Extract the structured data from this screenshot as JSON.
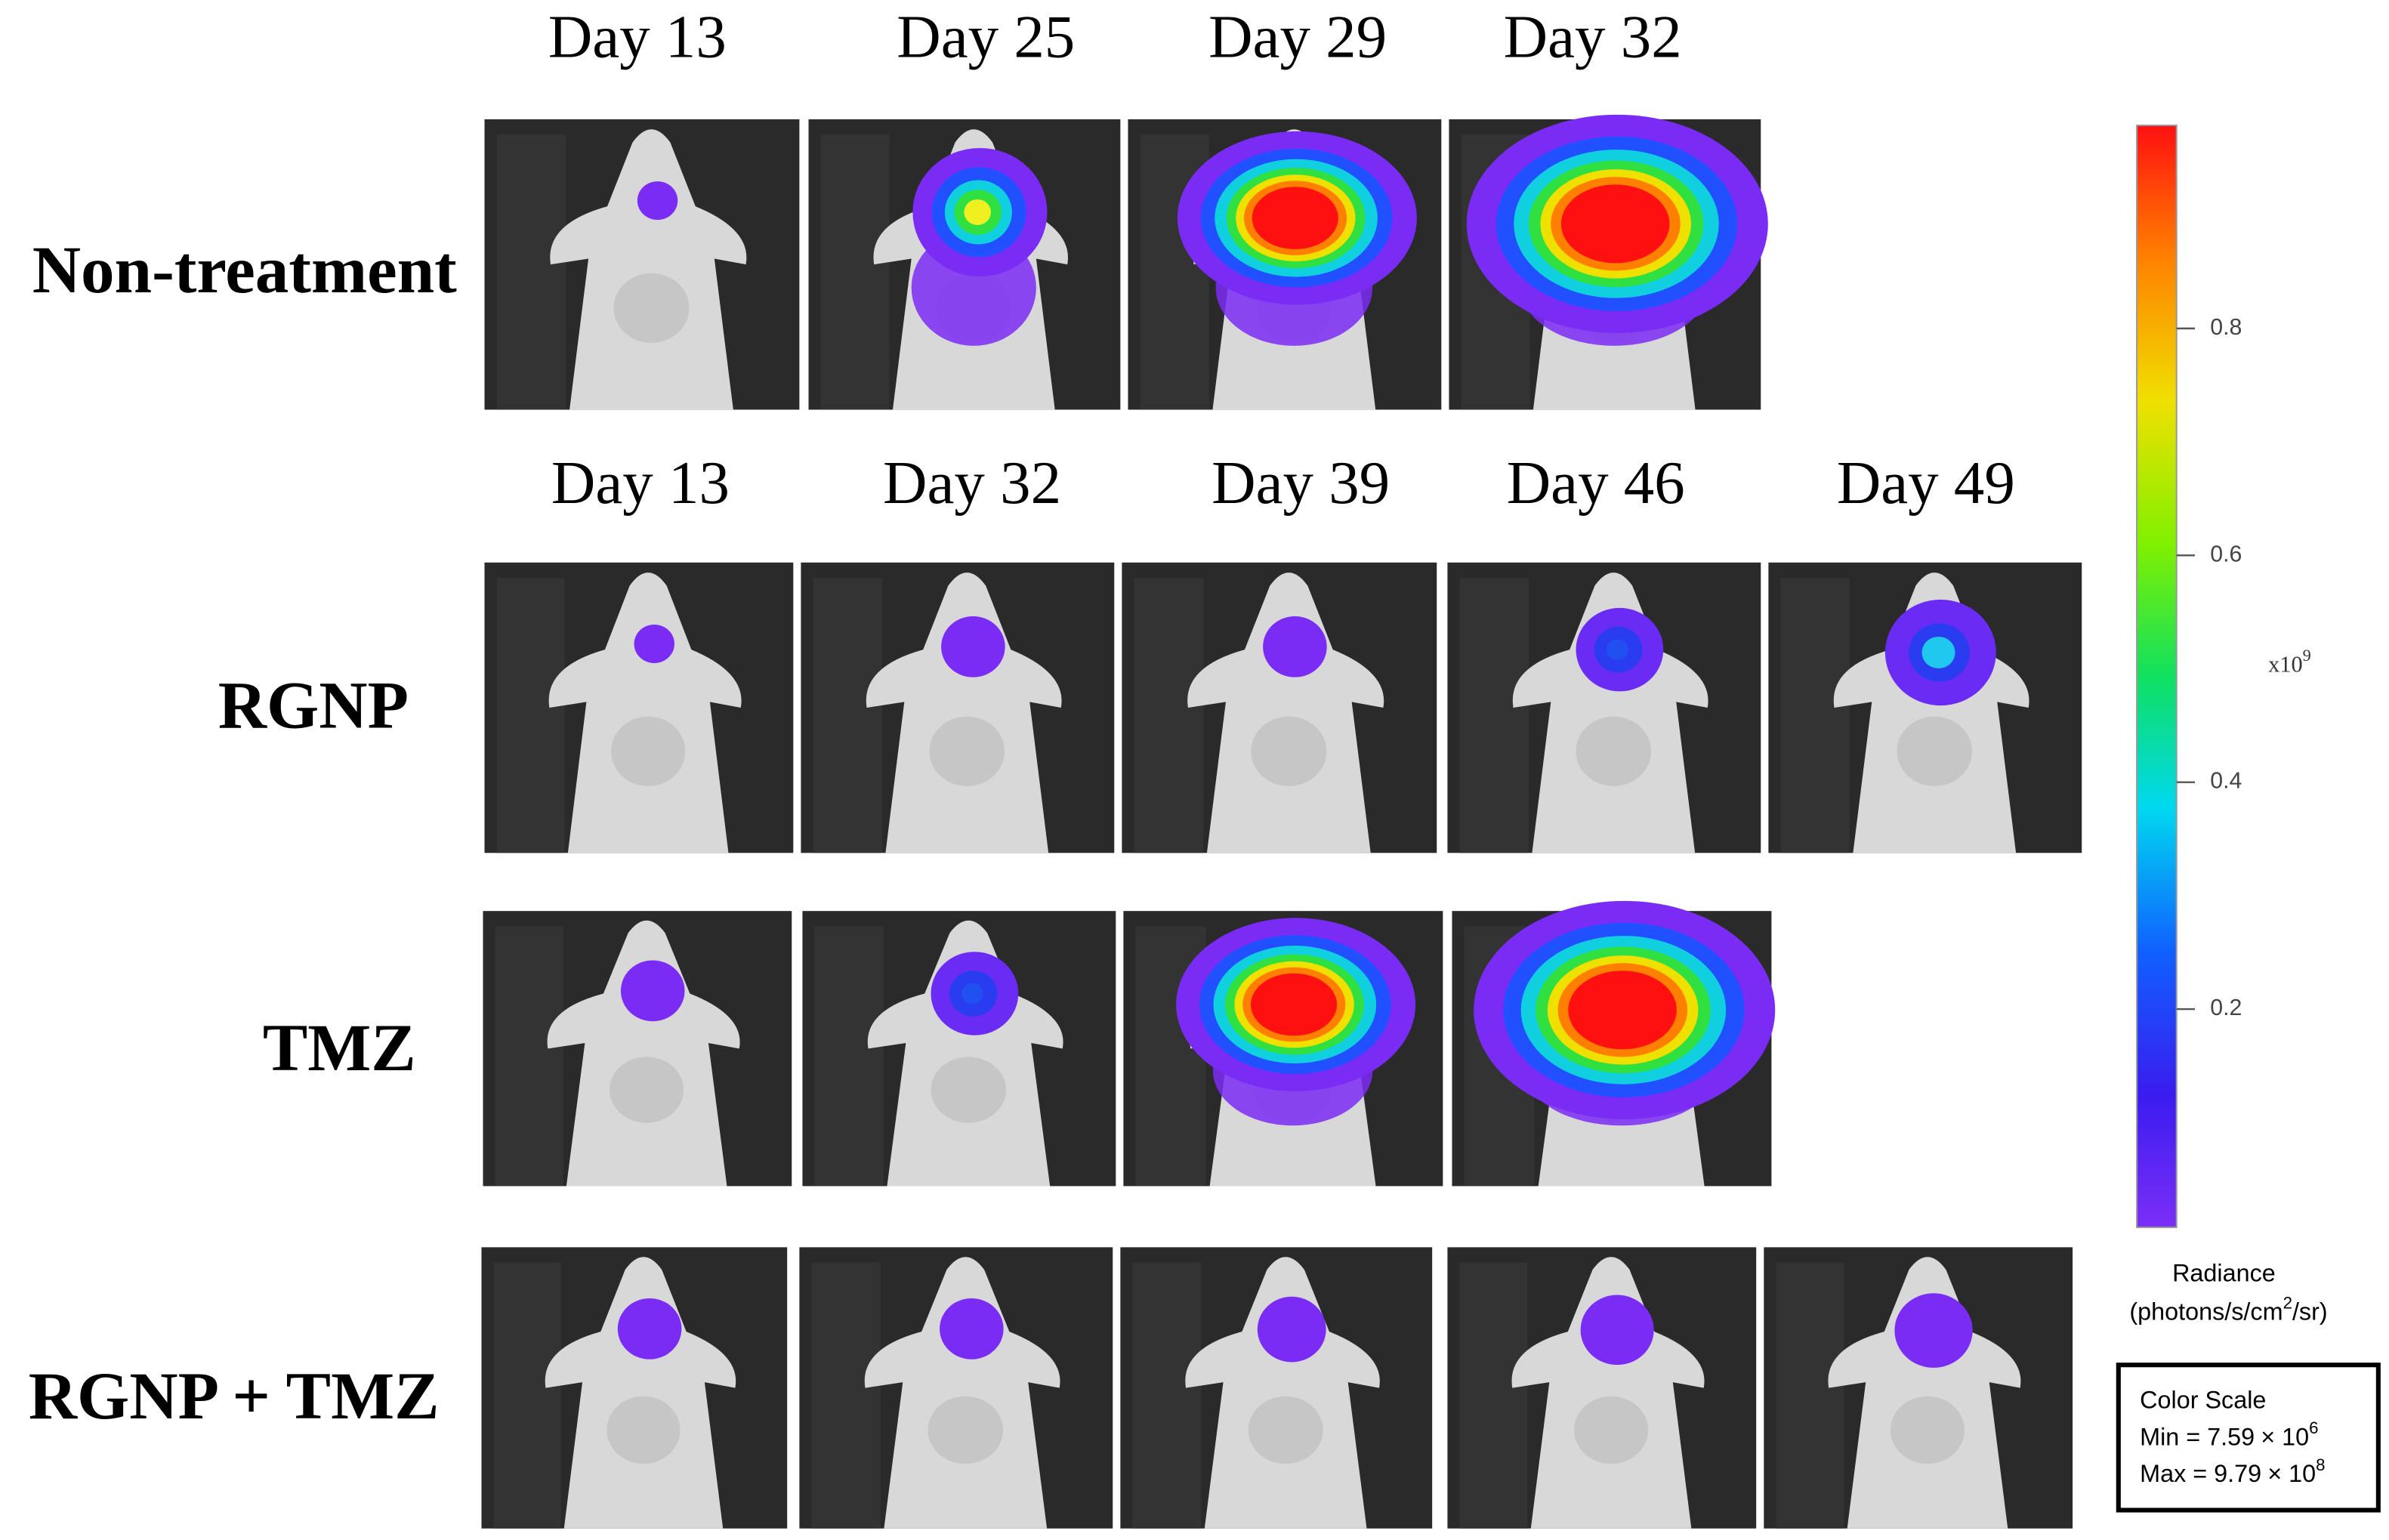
{
  "header_rows": [
    [
      "Day 13",
      "Day 25",
      "Day 29",
      "Day 32"
    ],
    [
      "Day 13",
      "Day 32",
      "Day 39",
      "Day 46",
      "Day 49"
    ]
  ],
  "row_labels": [
    "Non-treatment",
    "RGNP",
    "TMZ",
    "RGNP + TMZ"
  ],
  "colorbar": {
    "ticks": [
      0.2,
      0.4,
      0.6,
      0.8
    ],
    "lim": [
      0.00759,
      0.979
    ],
    "multiplier": "x10",
    "multiplier_exp": "9",
    "title": "Radiance",
    "unit": "(photons/s/cm",
    "unit_sup": "2",
    "unit_end": "/sr)"
  },
  "color_scale_box": {
    "title": "Color Scale",
    "min": {
      "label": "Min = 7.59",
      "times": "× 10",
      "exp": "6"
    },
    "max": {
      "label": "Max = 9.79",
      "times": "× 10",
      "exp": "8"
    }
  }
}
